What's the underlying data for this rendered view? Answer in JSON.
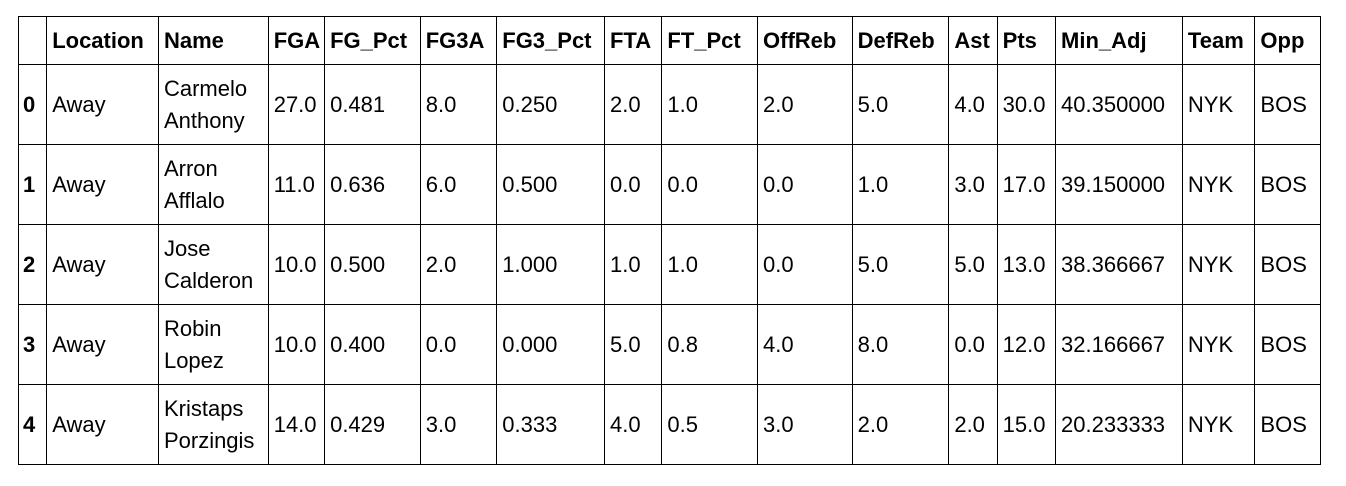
{
  "table": {
    "columns": [
      "",
      "Location",
      "Name",
      "FGA",
      "FG_Pct",
      "FG3A",
      "FG3_Pct",
      "FTA",
      "FT_Pct",
      "OffReb",
      "DefReb",
      "Ast",
      "Pts",
      "Min_Adj",
      "Team",
      "Opp"
    ],
    "rows": [
      {
        "index": "0",
        "cells": [
          "Away",
          [
            "Carmelo",
            "Anthony"
          ],
          "27.0",
          "0.481",
          "8.0",
          "0.250",
          "2.0",
          "1.0",
          "2.0",
          "5.0",
          "4.0",
          "30.0",
          "40.350000",
          "NYK",
          "BOS"
        ]
      },
      {
        "index": "1",
        "cells": [
          "Away",
          [
            "Arron",
            "Afflalo"
          ],
          "11.0",
          "0.636",
          "6.0",
          "0.500",
          "0.0",
          "0.0",
          "0.0",
          "1.0",
          "3.0",
          "17.0",
          "39.150000",
          "NYK",
          "BOS"
        ]
      },
      {
        "index": "2",
        "cells": [
          "Away",
          [
            "Jose",
            "Calderon"
          ],
          "10.0",
          "0.500",
          "2.0",
          "1.000",
          "1.0",
          "1.0",
          "0.0",
          "5.0",
          "5.0",
          "13.0",
          "38.366667",
          "NYK",
          "BOS"
        ]
      },
      {
        "index": "3",
        "cells": [
          "Away",
          [
            "Robin",
            "Lopez"
          ],
          "10.0",
          "0.400",
          "0.0",
          "0.000",
          "5.0",
          "0.8",
          "4.0",
          "8.0",
          "0.0",
          "12.0",
          "32.166667",
          "NYK",
          "BOS"
        ]
      },
      {
        "index": "4",
        "cells": [
          "Away",
          [
            "Kristaps",
            "Porzingis"
          ],
          "14.0",
          "0.429",
          "3.0",
          "0.333",
          "4.0",
          "0.5",
          "3.0",
          "2.0",
          "2.0",
          "15.0",
          "20.233333",
          "NYK",
          "BOS"
        ]
      }
    ]
  }
}
